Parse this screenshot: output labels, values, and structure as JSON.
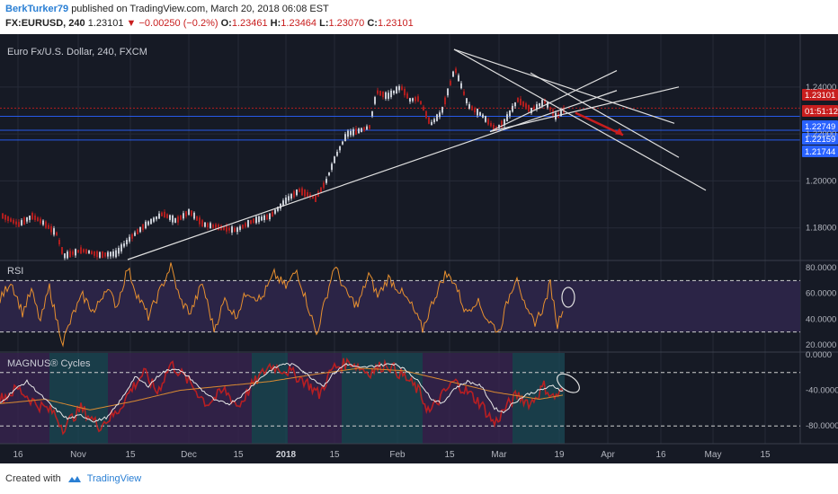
{
  "header": {
    "author": "BerkTurker79",
    "published_text": "published on TradingView.com, March 20, 2018 06:08 EST",
    "symbol": "FX:EURUSD, 240",
    "last": "1.23101",
    "change": "▼ −0.00250 (−0.2%)",
    "open_label": "O:",
    "open": "1.23461",
    "high_label": "H:",
    "high": "1.23464",
    "low_label": "L:",
    "low": "1.23070",
    "close_label": "C:",
    "close": "1.23101"
  },
  "colors": {
    "background": "#161a25",
    "grid": "#262b38",
    "text": "#b2b5be",
    "up": "#c8ccd4",
    "down": "#b01e1e",
    "rsi_line": "#e8902f",
    "rsi_band": "#2b2446",
    "magnus_white": "#e6e6e6",
    "magnus_orange": "#d98a32",
    "magnus_red": "#c81e1e",
    "trendline": "#e0e0e0",
    "price_marker": "#c81e1e",
    "blue_marker": "#2962ff"
  },
  "chart_data": [
    {
      "type": "candlestick",
      "title": "Euro Fx/U.S. Dollar, 240, FXCM",
      "y_ticks": [
        "1.24000",
        "1.22000",
        "1.20000",
        "1.18000"
      ],
      "ylim": [
        1.1665,
        1.2625
      ],
      "x_ticks": [
        "16",
        "Nov",
        "15",
        "Dec",
        "15",
        "2018",
        "15",
        "Feb",
        "15",
        "Mar",
        "19",
        "Apr",
        "16",
        "May",
        "15"
      ],
      "price_labels": [
        {
          "text": "1.23101",
          "value": 1.23101,
          "style": "red"
        },
        {
          "text": "01:51:12",
          "value": 1.2275,
          "style": "red"
        },
        {
          "text": "1.22749",
          "value": 1.22749,
          "style": "blue"
        },
        {
          "text": "1.22159",
          "value": 1.22159,
          "style": "blue"
        },
        {
          "text": "1.21744",
          "value": 1.21744,
          "style": "blue"
        }
      ],
      "horizontal_levels": [
        1.23101,
        1.22749,
        1.22159,
        1.21744
      ],
      "path": [
        [
          0,
          1.1855
        ],
        [
          20,
          1.1815
        ],
        [
          35,
          1.185
        ],
        [
          48,
          1.182
        ],
        [
          62,
          1.1775
        ],
        [
          70,
          1.168
        ],
        [
          90,
          1.1705
        ],
        [
          110,
          1.1685
        ],
        [
          128,
          1.169
        ],
        [
          145,
          1.176
        ],
        [
          160,
          1.181
        ],
        [
          180,
          1.186
        ],
        [
          195,
          1.183
        ],
        [
          210,
          1.187
        ],
        [
          225,
          1.1815
        ],
        [
          245,
          1.18
        ],
        [
          262,
          1.179
        ],
        [
          280,
          1.183
        ],
        [
          300,
          1.185
        ],
        [
          318,
          1.192
        ],
        [
          332,
          1.196
        ],
        [
          350,
          1.1925
        ],
        [
          362,
          1.2
        ],
        [
          372,
          1.21
        ],
        [
          385,
          1.22
        ],
        [
          400,
          1.2215
        ],
        [
          410,
          1.223
        ],
        [
          418,
          1.238
        ],
        [
          430,
          1.236
        ],
        [
          445,
          1.24
        ],
        [
          455,
          1.2345
        ],
        [
          465,
          1.235
        ],
        [
          478,
          1.224
        ],
        [
          490,
          1.229
        ],
        [
          505,
          1.248
        ],
        [
          520,
          1.232
        ],
        [
          535,
          1.228
        ],
        [
          550,
          1.222
        ],
        [
          560,
          1.225
        ],
        [
          575,
          1.2345
        ],
        [
          590,
          1.23
        ],
        [
          605,
          1.234
        ],
        [
          618,
          1.227
        ],
        [
          628,
          1.231
        ]
      ],
      "trendlines": [
        [
          [
            142,
            1.1665
          ],
          [
            686,
            1.2385
          ]
        ],
        [
          [
            545,
            1.221
          ],
          [
            755,
            1.24
          ]
        ],
        [
          [
            545,
            1.221
          ],
          [
            686,
            1.247
          ]
        ],
        [
          [
            505,
            1.256
          ],
          [
            750,
            1.2245
          ]
        ],
        [
          [
            505,
            1.256
          ],
          [
            785,
            1.196
          ]
        ],
        [
          [
            590,
            1.246
          ],
          [
            755,
            1.21
          ]
        ]
      ],
      "arrow": [
        [
          640,
          1.229
        ],
        [
          693,
          1.2195
        ]
      ]
    },
    {
      "type": "line",
      "title": "RSI",
      "y_ticks": [
        "80.0000",
        "60.0000",
        "40.0000",
        "20.0000"
      ],
      "ylim": [
        15,
        85
      ],
      "band": [
        30,
        70
      ],
      "series": [
        {
          "values": [
            [
              0,
              55
            ],
            [
              12,
              70
            ],
            [
              25,
              45
            ],
            [
              35,
              62
            ],
            [
              45,
              38
            ],
            [
              55,
              65
            ],
            [
              62,
              42
            ],
            [
              70,
              22
            ],
            [
              82,
              45
            ],
            [
              92,
              58
            ],
            [
              105,
              45
            ],
            [
              118,
              65
            ],
            [
              130,
              50
            ],
            [
              142,
              80
            ],
            [
              152,
              60
            ],
            [
              165,
              42
            ],
            [
              178,
              62
            ],
            [
              190,
              82
            ],
            [
              200,
              55
            ],
            [
              212,
              45
            ],
            [
              225,
              68
            ],
            [
              238,
              32
            ],
            [
              250,
              55
            ],
            [
              262,
              42
            ],
            [
              275,
              62
            ],
            [
              290,
              55
            ],
            [
              305,
              75
            ],
            [
              318,
              65
            ],
            [
              330,
              78
            ],
            [
              345,
              45
            ],
            [
              352,
              28
            ],
            [
              362,
              55
            ],
            [
              372,
              82
            ],
            [
              385,
              60
            ],
            [
              398,
              50
            ],
            [
              410,
              75
            ],
            [
              420,
              58
            ],
            [
              432,
              72
            ],
            [
              445,
              62
            ],
            [
              458,
              50
            ],
            [
              470,
              32
            ],
            [
              482,
              55
            ],
            [
              495,
              75
            ],
            [
              505,
              70
            ],
            [
              518,
              45
            ],
            [
              530,
              55
            ],
            [
              542,
              40
            ],
            [
              555,
              30
            ],
            [
              565,
              55
            ],
            [
              575,
              75
            ],
            [
              585,
              45
            ],
            [
              595,
              38
            ],
            [
              605,
              50
            ],
            [
              612,
              68
            ],
            [
              620,
              35
            ],
            [
              628,
              55
            ]
          ]
        }
      ]
    },
    {
      "type": "line",
      "title": "MAGNUS® Cycles",
      "y_ticks": [
        "0.0000",
        "-40.0000",
        "-80.0000"
      ],
      "ylim": [
        -100,
        2
      ],
      "series": [
        {
          "values": [
            [
              0,
              -55
            ],
            [
              15,
              -40
            ],
            [
              30,
              -30
            ],
            [
              45,
              -45
            ],
            [
              60,
              -60
            ],
            [
              75,
              -72
            ],
            [
              90,
              -68
            ],
            [
              105,
              -75
            ],
            [
              120,
              -70
            ],
            [
              135,
              -50
            ],
            [
              150,
              -25
            ],
            [
              165,
              -35
            ],
            [
              180,
              -20
            ],
            [
              195,
              -15
            ],
            [
              210,
              -25
            ],
            [
              225,
              -40
            ],
            [
              240,
              -52
            ],
            [
              255,
              -55
            ],
            [
              270,
              -45
            ],
            [
              285,
              -30
            ],
            [
              300,
              -18
            ],
            [
              315,
              -10
            ],
            [
              330,
              -12
            ],
            [
              345,
              -25
            ],
            [
              360,
              -35
            ],
            [
              370,
              -22
            ],
            [
              385,
              -10
            ],
            [
              400,
              -15
            ],
            [
              420,
              -12
            ],
            [
              440,
              -10
            ],
            [
              455,
              -20
            ],
            [
              470,
              -35
            ],
            [
              480,
              -50
            ],
            [
              492,
              -55
            ],
            [
              505,
              -38
            ],
            [
              520,
              -30
            ],
            [
              535,
              -35
            ],
            [
              550,
              -60
            ],
            [
              560,
              -65
            ],
            [
              570,
              -55
            ],
            [
              585,
              -45
            ],
            [
              600,
              -40
            ],
            [
              615,
              -35
            ],
            [
              628,
              -42
            ]
          ]
        },
        {
          "values": [
            [
              0,
              -55
            ],
            [
              50,
              -50
            ],
            [
              100,
              -62
            ],
            [
              150,
              -52
            ],
            [
              200,
              -40
            ],
            [
              250,
              -35
            ],
            [
              300,
              -30
            ],
            [
              350,
              -22
            ],
            [
              400,
              -15
            ],
            [
              450,
              -18
            ],
            [
              500,
              -30
            ],
            [
              550,
              -42
            ],
            [
              600,
              -50
            ],
            [
              628,
              -45
            ]
          ]
        },
        {
          "values": [
            [
              0,
              -50
            ],
            [
              20,
              -38
            ],
            [
              40,
              -55
            ],
            [
              60,
              -65
            ],
            [
              70,
              -82
            ],
            [
              90,
              -60
            ],
            [
              110,
              -80
            ],
            [
              130,
              -65
            ],
            [
              145,
              -40
            ],
            [
              160,
              -20
            ],
            [
              175,
              -42
            ],
            [
              190,
              -10
            ],
            [
              210,
              -30
            ],
            [
              230,
              -55
            ],
            [
              250,
              -40
            ],
            [
              265,
              -58
            ],
            [
              280,
              -35
            ],
            [
              300,
              -12
            ],
            [
              320,
              -18
            ],
            [
              340,
              -30
            ],
            [
              355,
              -45
            ],
            [
              370,
              -15
            ],
            [
              390,
              -8
            ],
            [
              410,
              -20
            ],
            [
              430,
              -10
            ],
            [
              450,
              -25
            ],
            [
              465,
              -40
            ],
            [
              478,
              -65
            ],
            [
              490,
              -48
            ],
            [
              505,
              -30
            ],
            [
              520,
              -42
            ],
            [
              535,
              -55
            ],
            [
              550,
              -78
            ],
            [
              562,
              -60
            ],
            [
              575,
              -45
            ],
            [
              590,
              -55
            ],
            [
              605,
              -35
            ],
            [
              615,
              -48
            ],
            [
              628,
              -40
            ]
          ]
        }
      ],
      "zones": [
        [
          0,
          55,
          "purple"
        ],
        [
          55,
          120,
          "teal"
        ],
        [
          120,
          185,
          "purple"
        ],
        [
          185,
          280,
          "purple"
        ],
        [
          280,
          320,
          "teal"
        ],
        [
          320,
          380,
          "purple"
        ],
        [
          380,
          470,
          "teal"
        ],
        [
          470,
          520,
          "purple"
        ],
        [
          520,
          570,
          "purple"
        ],
        [
          570,
          628,
          "teal"
        ]
      ]
    }
  ],
  "footer": {
    "created_with": "Created with",
    "brand": "TradingView"
  }
}
